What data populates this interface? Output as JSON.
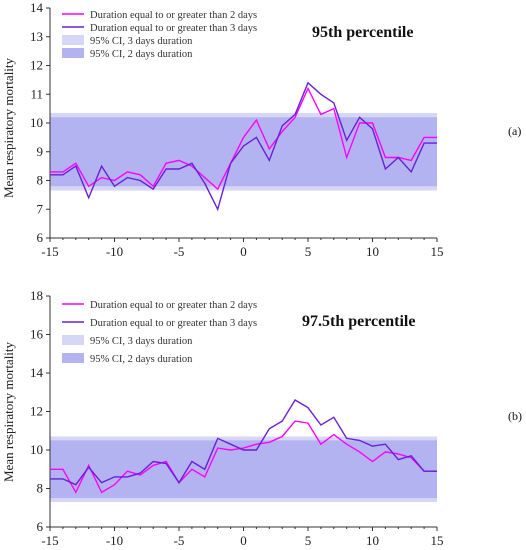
{
  "figure": {
    "y_axis_label": "Mean respiratory mortality"
  },
  "chart_data": [
    {
      "type": "line",
      "panel_label": "(a)",
      "title": "95th percentile",
      "ylabel": "Mean respiratory mortality",
      "xlim": [
        -15,
        15
      ],
      "ylim": [
        6,
        14
      ],
      "x_ticks": [
        "-15",
        "-10",
        "-5",
        "0",
        "5",
        "10",
        "15"
      ],
      "y_ticks": [
        "6",
        "7",
        "8",
        "9",
        "10",
        "11",
        "12",
        "13",
        "14"
      ],
      "bands": [
        {
          "name": "95% CI, 3 days duration",
          "lower": 7.65,
          "upper": 10.35,
          "color": "#d6d6f7"
        },
        {
          "name": "95% CI, 2 days duration",
          "lower": 7.8,
          "upper": 10.2,
          "color": "#b3b3f2"
        }
      ],
      "x": [
        -15,
        -14,
        -13,
        -12,
        -11,
        -10,
        -9,
        -8,
        -7,
        -6,
        -5,
        -4,
        -3,
        -2,
        -1,
        0,
        1,
        2,
        3,
        4,
        5,
        6,
        7,
        8,
        9,
        10,
        11,
        12,
        13,
        14,
        15
      ],
      "series": [
        {
          "name": "Duration equal to or greater than 2 days",
          "color": "#ff00ff",
          "values": [
            8.3,
            8.3,
            8.6,
            7.8,
            8.1,
            8.0,
            8.3,
            8.2,
            7.8,
            8.6,
            8.7,
            8.5,
            8.1,
            7.7,
            8.6,
            9.5,
            10.1,
            9.1,
            9.7,
            10.2,
            11.2,
            10.3,
            10.5,
            8.8,
            10.0,
            10.0,
            8.8,
            8.8,
            8.7,
            9.5,
            9.5
          ]
        },
        {
          "name": "Duration equal to or greater than 3 days",
          "color": "#6a1fd8",
          "values": [
            8.2,
            8.2,
            8.5,
            7.4,
            8.5,
            7.8,
            8.1,
            8.0,
            7.7,
            8.4,
            8.4,
            8.6,
            7.9,
            7.0,
            8.6,
            9.2,
            9.5,
            8.7,
            9.9,
            10.3,
            11.4,
            11.0,
            10.7,
            9.4,
            10.2,
            9.8,
            8.4,
            8.8,
            8.3,
            9.3,
            9.3
          ]
        }
      ]
    },
    {
      "type": "line",
      "panel_label": "(b)",
      "title": "97.5th percentile",
      "ylabel": "Mean respiratory mortality",
      "xlim": [
        -15,
        15
      ],
      "ylim": [
        6,
        18
      ],
      "x_ticks": [
        "-15",
        "-10",
        "-5",
        "0",
        "5",
        "10",
        "15"
      ],
      "y_ticks": [
        "6",
        "8",
        "10",
        "12",
        "14",
        "16",
        "18"
      ],
      "bands": [
        {
          "name": "95% CI, 3 days duration",
          "lower": 7.3,
          "upper": 10.7,
          "color": "#d6d6f7"
        },
        {
          "name": "95% CI, 2 days duration",
          "lower": 7.5,
          "upper": 10.5,
          "color": "#b3b3f2"
        }
      ],
      "x": [
        -15,
        -14,
        -13,
        -12,
        -11,
        -10,
        -9,
        -8,
        -7,
        -6,
        -5,
        -4,
        -3,
        -2,
        -1,
        0,
        1,
        2,
        3,
        4,
        5,
        6,
        7,
        8,
        9,
        10,
        11,
        12,
        13,
        14,
        15
      ],
      "series": [
        {
          "name": "Duration equal to or greater than 2 days",
          "color": "#ff00ff",
          "values": [
            9.0,
            9.0,
            7.8,
            9.2,
            7.8,
            8.2,
            8.9,
            8.7,
            9.2,
            9.4,
            8.3,
            9.0,
            8.6,
            10.1,
            10.0,
            10.1,
            10.3,
            10.4,
            10.7,
            11.5,
            11.4,
            10.3,
            10.8,
            10.3,
            9.9,
            9.4,
            9.9,
            9.8,
            9.6,
            8.9,
            8.9
          ]
        },
        {
          "name": "Duration equal to or greater than 3 days",
          "color": "#6a1fd8",
          "values": [
            8.5,
            8.5,
            8.2,
            9.1,
            8.3,
            8.6,
            8.6,
            8.8,
            9.4,
            9.3,
            8.3,
            9.4,
            9.0,
            10.6,
            10.3,
            10.0,
            10.0,
            11.1,
            11.5,
            12.6,
            12.2,
            11.3,
            11.7,
            10.6,
            10.5,
            10.2,
            10.3,
            9.5,
            9.7,
            8.9,
            8.9
          ]
        }
      ]
    }
  ]
}
